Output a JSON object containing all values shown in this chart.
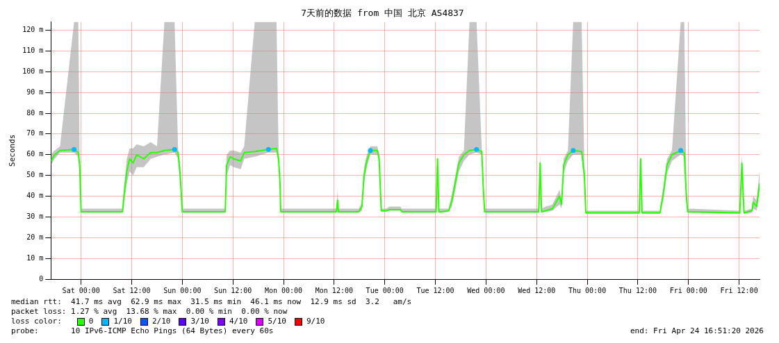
{
  "chart_data": {
    "type": "line",
    "title": "7天前的数据 from 中国 北京 AS4837",
    "ylabel": "Seconds",
    "legend_title": "loss color:",
    "legend": "bottom",
    "grid": true,
    "line_style": "solid",
    "xlim": [
      "2026-04-17T16:51",
      "2026-04-24T16:51"
    ],
    "xticks": [
      {
        "value": "2026-04-18T00:00",
        "label": "Sat 00:00"
      },
      {
        "value": "2026-04-18T12:00",
        "label": "Sat 12:00"
      },
      {
        "value": "2026-04-19T00:00",
        "label": "Sun 00:00"
      },
      {
        "value": "2026-04-19T12:00",
        "label": "Sun 12:00"
      },
      {
        "value": "2026-04-20T00:00",
        "label": "Mon 00:00"
      },
      {
        "value": "2026-04-20T12:00",
        "label": "Mon 12:00"
      },
      {
        "value": "2026-04-21T00:00",
        "label": "Tue 00:00"
      },
      {
        "value": "2026-04-21T12:00",
        "label": "Tue 12:00"
      },
      {
        "value": "2026-04-22T00:00",
        "label": "Wed 00:00"
      },
      {
        "value": "2026-04-22T12:00",
        "label": "Wed 12:00"
      },
      {
        "value": "2026-04-23T00:00",
        "label": "Thu 00:00"
      },
      {
        "value": "2026-04-23T12:00",
        "label": "Thu 12:00"
      },
      {
        "value": "2026-04-24T00:00",
        "label": "Fri 00:00"
      },
      {
        "value": "2026-04-24T12:00",
        "label": "Fri 12:00"
      }
    ],
    "ylim": [
      0,
      124
    ],
    "yticks": [
      0,
      {
        "value": 10,
        "label": "10 m"
      },
      {
        "value": 20,
        "label": "20 m"
      },
      {
        "value": 30,
        "label": "30 m"
      },
      {
        "value": 40,
        "label": "40 m"
      },
      {
        "value": 50,
        "label": "50 m"
      },
      {
        "value": 60,
        "label": "60 m"
      },
      {
        "value": 70,
        "label": "70 m"
      },
      {
        "value": 80,
        "label": "80 m"
      },
      {
        "value": 90,
        "label": "90 m"
      },
      {
        "value": 100,
        "label": "100 m"
      },
      {
        "value": 110,
        "label": "110 m"
      },
      {
        "value": 120,
        "label": "120 m"
      }
    ],
    "series": [
      {
        "name": "0",
        "color": "#26ff00",
        "x": [
          "2026-04-17T16:51",
          "2026-04-17T17:45",
          "2026-04-17T19:00",
          "2026-04-17T22:20",
          "2026-04-17T23:20",
          "2026-04-17T23:40",
          "2026-04-18T00:00",
          "2026-04-18T09:50",
          "2026-04-18T10:10",
          "2026-04-18T10:50",
          "2026-04-18T11:30",
          "2026-04-18T12:20",
          "2026-04-18T13:10",
          "2026-04-18T14:50",
          "2026-04-18T16:30",
          "2026-04-18T18:00",
          "2026-04-18T19:45",
          "2026-04-18T22:10",
          "2026-04-18T23:00",
          "2026-04-18T23:30",
          "2026-04-19T00:00",
          "2026-04-19T10:10",
          "2026-04-19T10:30",
          "2026-04-19T11:20",
          "2026-04-19T12:10",
          "2026-04-19T13:50",
          "2026-04-19T14:40",
          "2026-04-19T17:10",
          "2026-04-19T20:25",
          "2026-04-19T22:20",
          "2026-04-19T22:50",
          "2026-04-19T23:10",
          "2026-04-19T23:20",
          "2026-04-20T12:30",
          "2026-04-20T12:50",
          "2026-04-20T13:00",
          "2026-04-20T17:50",
          "2026-04-20T18:35",
          "2026-04-20T19:05",
          "2026-04-20T19:45",
          "2026-04-20T20:35",
          "2026-04-20T22:15",
          "2026-04-20T22:40",
          "2026-04-20T23:10",
          "2026-04-21T00:20",
          "2026-04-21T01:10",
          "2026-04-21T03:40",
          "2026-04-21T04:05",
          "2026-04-21T12:10",
          "2026-04-21T12:30",
          "2026-04-21T12:50",
          "2026-04-21T13:30",
          "2026-04-21T15:10",
          "2026-04-21T15:55",
          "2026-04-21T16:45",
          "2026-04-21T17:35",
          "2026-04-21T18:45",
          "2026-04-21T20:05",
          "2026-04-21T21:45",
          "2026-04-21T23:00",
          "2026-04-21T23:20",
          "2026-04-21T23:40",
          "2026-04-22T12:30",
          "2026-04-22T12:50",
          "2026-04-22T13:10",
          "2026-04-22T14:10",
          "2026-04-22T15:45",
          "2026-04-22T17:25",
          "2026-04-22T17:55",
          "2026-04-22T18:25",
          "2026-04-22T19:25",
          "2026-04-22T20:40",
          "2026-04-22T22:40",
          "2026-04-22T23:20",
          "2026-04-22T23:40",
          "2026-04-23T12:20",
          "2026-04-23T12:40",
          "2026-04-23T13:00",
          "2026-04-23T17:15",
          "2026-04-23T18:05",
          "2026-04-23T18:55",
          "2026-04-23T20:05",
          "2026-04-23T22:10",
          "2026-04-23T23:00",
          "2026-04-23T23:30",
          "2026-04-23T23:50",
          "2026-04-24T12:10",
          "2026-04-24T12:40",
          "2026-04-24T13:10",
          "2026-04-24T15:05",
          "2026-04-24T15:20",
          "2026-04-24T16:10",
          "2026-04-24T16:51"
        ],
        "values": [
          57,
          60,
          62,
          62.5,
          61,
          55,
          32.5,
          32.5,
          40,
          52,
          58,
          56,
          60,
          58,
          61,
          61,
          62,
          62.5,
          61,
          50,
          32.5,
          32.5,
          55,
          59,
          58,
          57,
          61,
          61.5,
          62.5,
          63,
          58,
          46,
          32.5,
          32.5,
          38,
          32.5,
          32.5,
          35,
          50,
          57,
          62,
          62,
          58,
          33,
          33,
          33.5,
          33.5,
          32.5,
          32.5,
          58,
          32.5,
          32.5,
          33,
          38,
          47,
          56,
          60,
          62,
          62.5,
          61.5,
          45,
          32.5,
          32.5,
          56,
          32.5,
          33,
          34,
          40,
          36,
          55,
          60,
          62,
          61.5,
          50,
          32,
          32,
          58,
          32,
          32,
          42,
          55,
          60,
          62,
          61,
          40,
          32.5,
          32,
          56,
          32,
          33,
          37,
          35,
          46
        ],
        "lower": [
          55,
          58,
          61,
          61,
          59,
          50,
          32,
          32,
          36,
          46,
          52,
          50,
          54,
          54,
          58,
          59,
          60,
          61,
          58,
          45,
          32,
          32,
          50,
          55,
          54,
          53,
          58,
          59,
          61,
          61,
          55,
          42,
          32,
          32,
          33,
          32,
          32,
          33,
          46,
          54,
          60,
          60,
          55,
          32.5,
          32.5,
          33,
          33,
          32,
          32,
          50,
          32,
          32,
          32.5,
          35,
          43,
          52,
          57,
          60,
          61,
          60,
          42,
          32,
          32,
          50,
          32,
          32.5,
          33,
          36,
          34,
          51,
          57,
          60,
          60,
          45,
          31.5,
          31.5,
          50,
          31.5,
          31.5,
          38,
          51,
          57,
          60,
          59,
          36,
          32,
          31.5,
          50,
          31.5,
          32,
          34,
          33,
          42
        ],
        "upper": [
          60,
          62,
          64,
          124,
          124,
          58,
          34,
          34,
          44,
          58,
          63,
          63,
          65,
          64,
          66,
          64,
          124,
          124,
          63,
          55,
          34,
          34,
          60,
          62,
          62,
          61,
          64,
          124,
          124,
          124,
          60,
          50,
          34,
          34,
          43,
          34,
          34,
          37,
          54,
          60,
          64,
          64,
          60,
          34,
          34,
          35,
          35,
          34,
          34,
          60,
          34,
          34,
          34,
          41,
          50,
          59,
          62,
          124,
          124,
          63,
          48,
          34,
          34,
          60,
          34,
          35,
          36,
          43,
          38,
          58,
          62,
          124,
          124,
          54,
          33,
          33,
          60,
          33,
          33,
          45,
          58,
          62,
          124,
          124,
          44,
          34,
          33,
          60,
          33,
          34,
          40,
          38,
          52
        ]
      },
      {
        "name": "1/10",
        "type": "scatter",
        "color": "#00b8ff",
        "x": [
          "2026-04-17T22:20",
          "2026-04-18T22:10",
          "2026-04-19T20:25",
          "2026-04-20T20:35",
          "2026-04-21T21:45",
          "2026-04-22T20:40",
          "2026-04-23T22:10"
        ],
        "values": [
          62.5,
          62.5,
          62.5,
          62,
          62.5,
          62,
          62
        ]
      },
      {
        "name": "2/10",
        "color": "#0059ff"
      },
      {
        "name": "3/10",
        "color": "#5e00ff"
      },
      {
        "name": "4/10",
        "color": "#7e00ff"
      },
      {
        "name": "5/10",
        "color": "#dd00ff"
      },
      {
        "name": "9/10",
        "color": "#ff0000"
      }
    ],
    "annotations": [
      "median rtt:  41.7 ms avg  62.9 ms max  31.5 ms min  46.1 ms now  12.9 ms sd  3.2   am/s",
      "packet loss: 1.27 % avg  13.68 % max  0.00 % min  0.00 % now",
      "probe:       10 IPv6-ICMP Echo Pings (64 Bytes) every 60s",
      "end: Fri Apr 24 16:51:20 2026"
    ]
  }
}
